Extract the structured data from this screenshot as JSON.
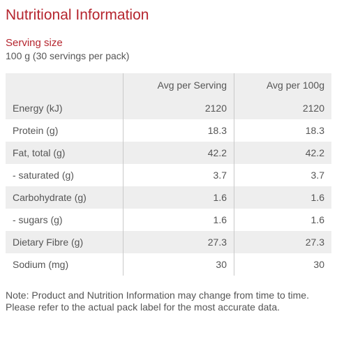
{
  "title": "Nutritional Information",
  "serving": {
    "label": "Serving size",
    "value": "100 g (30 servings per pack)"
  },
  "table": {
    "headers": [
      "",
      "Avg per Serving",
      "Avg per 100g"
    ],
    "rows": [
      {
        "name": "Energy (kJ)",
        "per_serving": "2120",
        "per_100g": "2120"
      },
      {
        "name": "Protein (g)",
        "per_serving": "18.3",
        "per_100g": "18.3"
      },
      {
        "name": "Fat, total (g)",
        "per_serving": "42.2",
        "per_100g": "42.2"
      },
      {
        "name": "- saturated (g)",
        "per_serving": "3.7",
        "per_100g": "3.7"
      },
      {
        "name": "Carbohydrate (g)",
        "per_serving": "1.6",
        "per_100g": "1.6"
      },
      {
        "name": "- sugars (g)",
        "per_serving": "1.6",
        "per_100g": "1.6"
      },
      {
        "name": "Dietary Fibre (g)",
        "per_serving": "27.3",
        "per_100g": "27.3"
      },
      {
        "name": "Sodium (mg)",
        "per_serving": "30",
        "per_100g": "30"
      }
    ]
  },
  "note": "Note: Product and Nutrition Information may change from time to time. Please refer to the actual pack label for the most accurate data.",
  "colors": {
    "accent": "#b5252e",
    "text": "#555555",
    "row_shade": "#eeeeee",
    "divider": "#c9c9c9"
  }
}
